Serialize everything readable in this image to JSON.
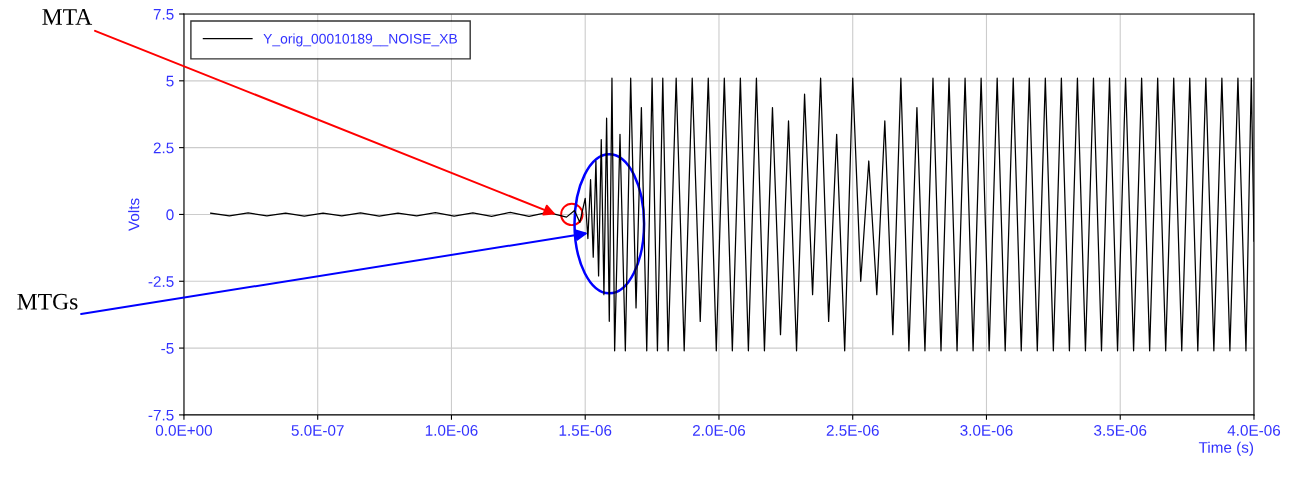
{
  "chart_data": {
    "type": "line",
    "xlabel": "Time (s)",
    "ylabel": "Volts",
    "xlim": [
      0,
      4e-06
    ],
    "ylim": [
      -7.5,
      7.5
    ],
    "xticks": [
      {
        "value": 0,
        "label": "0.0E+00"
      },
      {
        "value": 5e-07,
        "label": "5.0E-07"
      },
      {
        "value": 1e-06,
        "label": "1.0E-06"
      },
      {
        "value": 1.5e-06,
        "label": "1.5E-06"
      },
      {
        "value": 2e-06,
        "label": "2.0E-06"
      },
      {
        "value": 2.5e-06,
        "label": "2.5E-06"
      },
      {
        "value": 3e-06,
        "label": "3.0E-06"
      },
      {
        "value": 3.5e-06,
        "label": "3.5E-06"
      },
      {
        "value": 4e-06,
        "label": "4.0E-06"
      }
    ],
    "yticks": [
      -7.5,
      -5,
      -2.5,
      0,
      2.5,
      5,
      7.5
    ],
    "grid": true,
    "legend": "top left",
    "marker": "none",
    "line_style": "solid",
    "annotations": [
      {
        "text": "MTA",
        "x": 1.39e-06,
        "y": 0
      },
      {
        "text": "MTGs",
        "x": 1.51e-06,
        "y": -0.7
      }
    ],
    "series": [
      {
        "name": "Y_orig_00010189__NOISE_XB",
        "color": "#000000",
        "x": [
          1e-07,
          1.7e-07,
          2.4e-07,
          3.1e-07,
          3.8e-07,
          4.5e-07,
          5.2e-07,
          5.9e-07,
          6.6e-07,
          7.3e-07,
          8e-07,
          8.7e-07,
          9.4e-07,
          1.01e-06,
          1.08e-06,
          1.15e-06,
          1.22e-06,
          1.29e-06,
          1.36e-06,
          1.43e-06,
          1.46e-06,
          1.48e-06,
          1.5e-06,
          1.51e-06,
          1.52e-06,
          1.53e-06,
          1.54e-06,
          1.55e-06,
          1.56e-06,
          1.57e-06,
          1.58e-06,
          1.59e-06,
          1.6e-06,
          1.61e-06,
          1.63e-06,
          1.65e-06,
          1.67e-06,
          1.69e-06,
          1.71e-06,
          1.73e-06,
          1.75e-06,
          1.77e-06,
          1.79e-06,
          1.81e-06,
          1.84e-06,
          1.87e-06,
          1.9e-06,
          1.93e-06,
          1.96e-06,
          1.99e-06,
          2.02e-06,
          2.05e-06,
          2.08e-06,
          2.11e-06,
          2.14e-06,
          2.17e-06,
          2.2e-06,
          2.23e-06,
          2.26e-06,
          2.29e-06,
          2.32e-06,
          2.35e-06,
          2.38e-06,
          2.41e-06,
          2.44e-06,
          2.47e-06,
          2.5e-06,
          2.53e-06,
          2.56e-06,
          2.59e-06,
          2.62e-06,
          2.65e-06,
          2.68e-06,
          2.71e-06,
          2.74e-06,
          2.77e-06,
          2.8e-06,
          2.83e-06,
          2.86e-06,
          2.89e-06,
          2.92e-06,
          2.95e-06,
          2.98e-06,
          3.01e-06,
          3.04e-06,
          3.07e-06,
          3.1e-06,
          3.13e-06,
          3.16e-06,
          3.19e-06,
          3.22e-06,
          3.25e-06,
          3.28e-06,
          3.31e-06,
          3.34e-06,
          3.37e-06,
          3.4e-06,
          3.43e-06,
          3.46e-06,
          3.49e-06,
          3.52e-06,
          3.55e-06,
          3.58e-06,
          3.61e-06,
          3.64e-06,
          3.67e-06,
          3.7e-06,
          3.73e-06,
          3.76e-06,
          3.79e-06,
          3.82e-06,
          3.85e-06,
          3.88e-06,
          3.91e-06,
          3.94e-06,
          3.97e-06,
          3.99e-06,
          4e-06
        ],
        "values": [
          0.05,
          -0.05,
          0.06,
          -0.05,
          0.05,
          -0.06,
          0.05,
          -0.05,
          0.06,
          -0.06,
          0.05,
          -0.05,
          0.07,
          -0.06,
          0.06,
          -0.07,
          0.08,
          -0.07,
          0.08,
          -0.1,
          0.15,
          -0.3,
          0.6,
          -0.9,
          1.3,
          -1.6,
          2.0,
          -2.3,
          2.8,
          -3.0,
          3.6,
          -4.0,
          5.1,
          -5.1,
          3.0,
          -5.1,
          5.1,
          -3.5,
          4.0,
          -5.1,
          5.1,
          -5.1,
          5.1,
          -5.1,
          5.1,
          -5.1,
          5.1,
          -4.0,
          5.1,
          -5.1,
          5.1,
          -5.1,
          5.1,
          -5.1,
          5.1,
          -5.1,
          4.0,
          -4.5,
          3.5,
          -5.1,
          4.5,
          -3.0,
          5.1,
          -4.0,
          3.0,
          -5.1,
          5.1,
          -2.5,
          2.0,
          -3.0,
          3.5,
          -4.5,
          5.1,
          -5.1,
          4.0,
          -5.1,
          5.1,
          -5.1,
          5.1,
          -5.1,
          5.1,
          -5.1,
          5.1,
          -5.1,
          5.1,
          -5.1,
          5.1,
          -5.1,
          5.1,
          -5.1,
          5.1,
          -5.1,
          5.1,
          -5.1,
          5.1,
          -5.1,
          5.1,
          -5.1,
          5.1,
          -5.1,
          5.1,
          -5.1,
          5.1,
          -5.1,
          5.1,
          -5.1,
          5.1,
          -5.1,
          5.1,
          -5.1,
          5.1,
          -5.1,
          5.1,
          -5.1,
          5.1,
          -5.1,
          5.1,
          -1.0
        ]
      }
    ]
  }
}
